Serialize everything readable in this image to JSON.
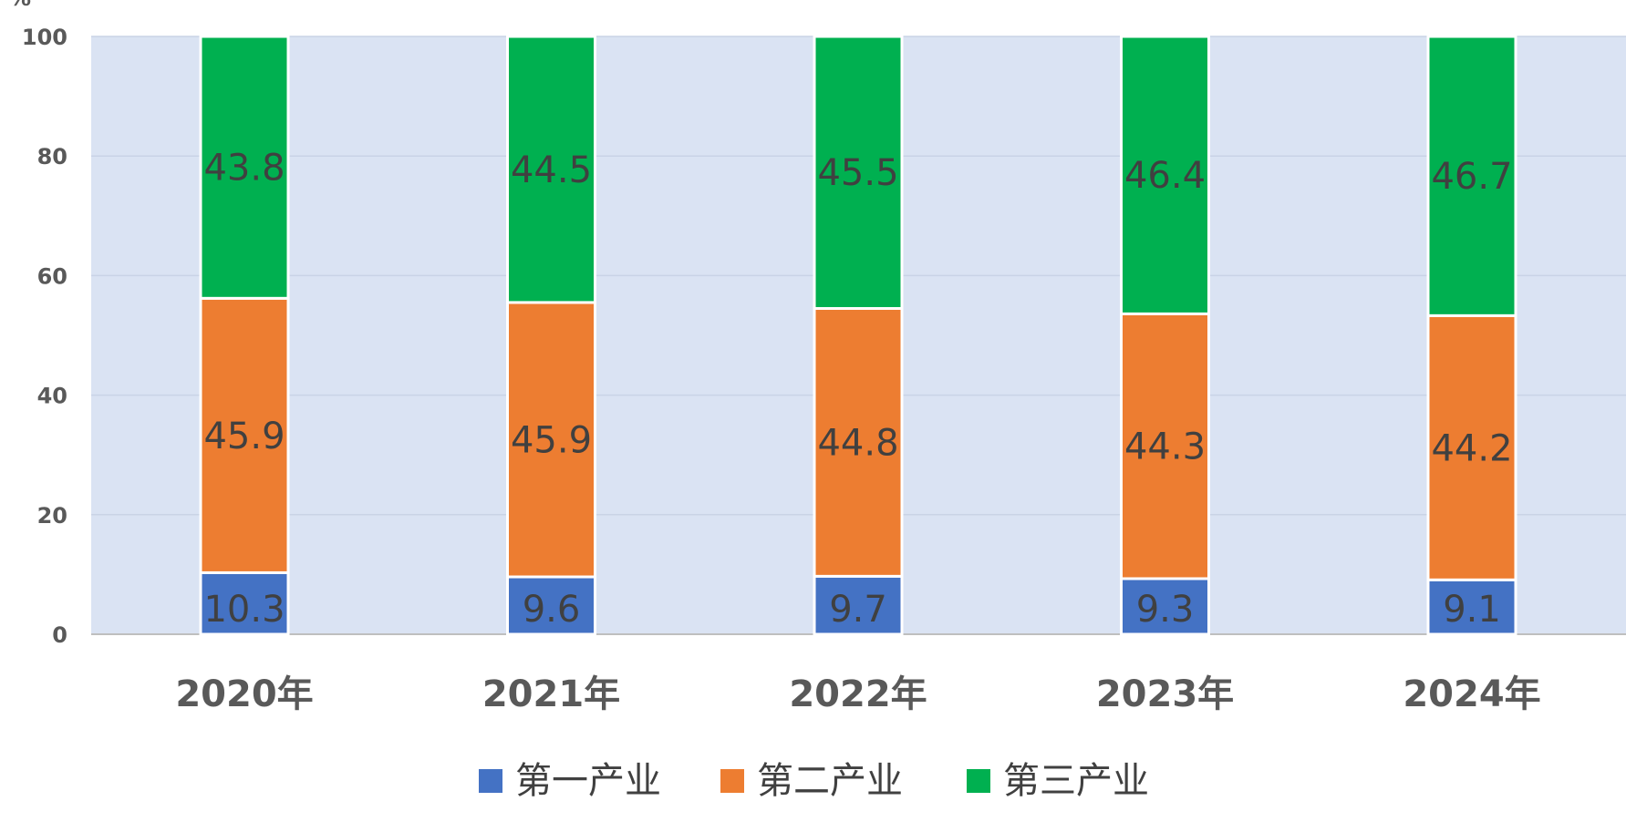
{
  "chart_data": {
    "type": "bar",
    "stacked": true,
    "ylabel": "%",
    "ylim": [
      0,
      100
    ],
    "yticks": [
      0,
      20,
      40,
      60,
      80,
      100
    ],
    "grid": true,
    "legend_position": "bottom",
    "background_color": "#dae3f3",
    "categories": [
      "2020年",
      "2021年",
      "2022年",
      "2023年",
      "2024年"
    ],
    "series": [
      {
        "name": "第一产业",
        "color": "#4472c4",
        "values": [
          10.3,
          9.6,
          9.7,
          9.3,
          9.1
        ]
      },
      {
        "name": "第二产业",
        "color": "#ed7d31",
        "values": [
          45.9,
          45.9,
          44.8,
          44.3,
          44.2
        ]
      },
      {
        "name": "第三产业",
        "color": "#00b050",
        "values": [
          43.8,
          44.5,
          45.5,
          46.4,
          46.7
        ]
      }
    ]
  }
}
